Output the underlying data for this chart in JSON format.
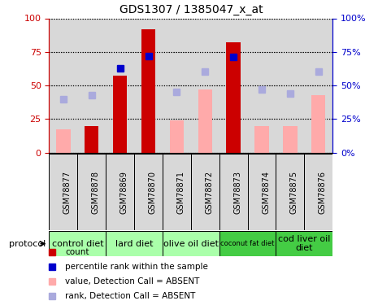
{
  "title": "GDS1307 / 1385047_x_at",
  "samples": [
    "GSM78877",
    "GSM78878",
    "GSM78869",
    "GSM78870",
    "GSM78871",
    "GSM78872",
    "GSM78873",
    "GSM78874",
    "GSM78875",
    "GSM78876"
  ],
  "red_bars": [
    0,
    20,
    57,
    92,
    0,
    0,
    82,
    0,
    0,
    0
  ],
  "blue_squares": [
    null,
    null,
    63,
    72,
    null,
    null,
    71,
    null,
    null,
    null
  ],
  "pink_bars": [
    17,
    null,
    null,
    null,
    24,
    47,
    null,
    20,
    20,
    43
  ],
  "light_blue_squares": [
    40,
    43,
    null,
    null,
    45,
    60,
    null,
    47,
    44,
    60
  ],
  "protocols": [
    {
      "label": "control diet",
      "start": 0,
      "end": 2,
      "color": "#aaffaa"
    },
    {
      "label": "lard diet",
      "start": 2,
      "end": 4,
      "color": "#aaffaa"
    },
    {
      "label": "olive oil diet",
      "start": 4,
      "end": 6,
      "color": "#aaffaa"
    },
    {
      "label": "coconut fat diet",
      "start": 6,
      "end": 8,
      "color": "#44cc44"
    },
    {
      "label": "cod liver oil\ndiet",
      "start": 8,
      "end": 10,
      "color": "#44cc44"
    }
  ],
  "ylim": [
    0,
    100
  ],
  "bar_width": 0.5,
  "red_color": "#cc0000",
  "pink_color": "#ffaaaa",
  "blue_color": "#0000cc",
  "light_blue_color": "#aaaadd",
  "bg_color": "#ffffff",
  "col_bg_color": "#d8d8d8",
  "left_axis_color": "#cc0000",
  "right_axis_color": "#0000cc"
}
